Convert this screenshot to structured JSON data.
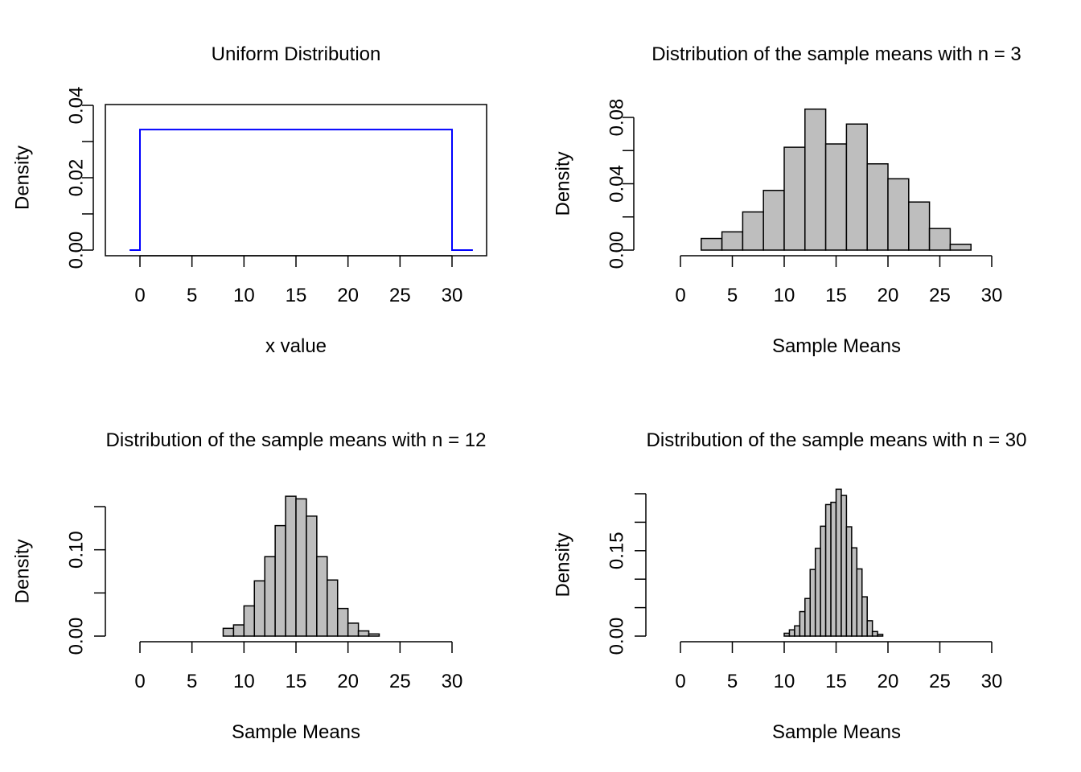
{
  "chart_data": [
    {
      "type": "line",
      "title": "Uniform Distribution",
      "xlabel": "x value",
      "ylabel": "Density",
      "xlim": [
        -3.4,
        33.4
      ],
      "ylim": [
        -0.0016,
        0.0416
      ],
      "x_ticks": [
        "0",
        "5",
        "10",
        "15",
        "20",
        "25",
        "30"
      ],
      "y_ticks": [
        "0.00",
        "0.02",
        "0.04"
      ],
      "y_minor_ticks": [
        0.0,
        0.01,
        0.02,
        0.03,
        0.04
      ],
      "box": true,
      "line_color": "#0000ff",
      "x": [
        -1,
        0,
        0,
        30,
        30,
        32
      ],
      "y": [
        0,
        0,
        0.0333,
        0.0333,
        0,
        0
      ]
    },
    {
      "type": "bar",
      "title": "Distribution of the sample means with n = 3",
      "xlabel": "Sample Means",
      "ylabel": "Density",
      "xlim": [
        0,
        30
      ],
      "ylim": [
        0,
        0.084
      ],
      "x_ticks": [
        "0",
        "5",
        "10",
        "15",
        "20",
        "25",
        "30"
      ],
      "y_ticks": [
        "0.00",
        "0.04",
        "0.08"
      ],
      "y_minor_ticks": [
        0.0,
        0.02,
        0.04,
        0.06,
        0.08
      ],
      "bar_color": "#bebebe",
      "bin_edges": [
        2,
        4,
        6,
        8,
        10,
        12,
        14,
        16,
        18,
        20,
        22,
        24,
        26,
        28
      ],
      "values": [
        0.007,
        0.011,
        0.023,
        0.036,
        0.062,
        0.085,
        0.064,
        0.076,
        0.052,
        0.043,
        0.029,
        0.013,
        0.0035
      ]
    },
    {
      "type": "bar",
      "title": "Distribution of the sample means with n = 12",
      "xlabel": "Sample Means",
      "ylabel": "Density",
      "xlim": [
        0,
        30
      ],
      "ylim": [
        0,
        0.15
      ],
      "x_ticks": [
        "0",
        "5",
        "10",
        "15",
        "20",
        "25",
        "30"
      ],
      "y_ticks": [
        "0.00",
        "0.10"
      ],
      "y_minor_ticks": [
        0.0,
        0.05,
        0.1,
        0.15
      ],
      "bar_color": "#bebebe",
      "bin_edges": [
        8,
        9,
        10,
        11,
        12,
        13,
        14,
        15,
        16,
        17,
        18,
        19,
        20,
        21,
        22,
        23
      ],
      "values": [
        0.009,
        0.013,
        0.035,
        0.064,
        0.092,
        0.128,
        0.162,
        0.159,
        0.139,
        0.092,
        0.065,
        0.032,
        0.015,
        0.006,
        0.0025
      ]
    },
    {
      "type": "bar",
      "title": "Distribution of the sample means with n = 30",
      "xlabel": "Sample Means",
      "ylabel": "Density",
      "xlim": [
        0,
        30
      ],
      "ylim": [
        0,
        0.25
      ],
      "x_ticks": [
        "0",
        "5",
        "10",
        "15",
        "20",
        "25",
        "30"
      ],
      "y_ticks": [
        "0.00",
        "0.15"
      ],
      "y_minor_ticks": [
        0.0,
        0.05,
        0.1,
        0.15,
        0.2,
        0.25
      ],
      "bar_color": "#bebebe",
      "bin_edges": [
        10,
        10.5,
        11,
        11.5,
        12,
        12.5,
        13,
        13.5,
        14,
        14.5,
        15,
        15.5,
        16,
        16.5,
        17,
        17.5,
        18,
        18.5,
        19,
        19.5
      ],
      "values": [
        0.005,
        0.011,
        0.018,
        0.043,
        0.066,
        0.117,
        0.154,
        0.193,
        0.231,
        0.235,
        0.258,
        0.247,
        0.192,
        0.155,
        0.118,
        0.069,
        0.027,
        0.008,
        0.003
      ]
    }
  ]
}
